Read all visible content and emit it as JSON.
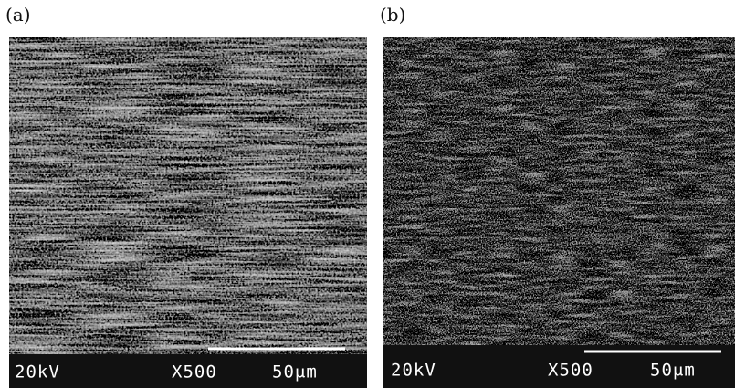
{
  "panels": [
    {
      "label": "(a)",
      "voltage": "20kV",
      "magnification": "X500",
      "scale": "50μm"
    },
    {
      "label": "(b)",
      "voltage": "20kV",
      "magnification": "X500",
      "scale": "50μm"
    }
  ]
}
